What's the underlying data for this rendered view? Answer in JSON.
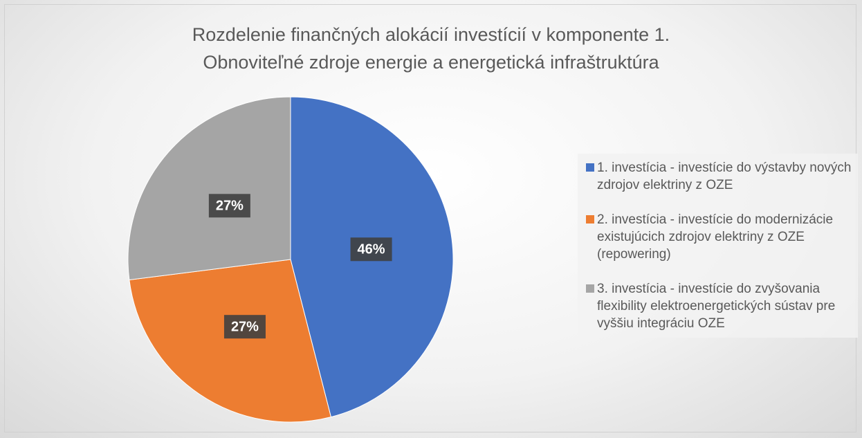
{
  "chart_data": {
    "type": "pie",
    "title": "Rozdelenie finančných alokácií investícií v komponente 1.\nObnoviteľné zdroje energie a energetická infraštruktúra",
    "categories": [
      "1. investícia - investície do výstavby nových zdrojov elektriny z OZE",
      "2. investícia - investície do modernizácie existujúcich zdrojov elektriny z OZE (repowering)",
      "3. investícia - investície do zvyšovania flexibility elektroenergetických sústav pre vyššiu integráciu OZE"
    ],
    "values": [
      46,
      27,
      27
    ],
    "value_labels": [
      "46%",
      "27%",
      "27%"
    ],
    "colors": [
      "#4472c4",
      "#ed7d31",
      "#a5a5a5"
    ],
    "legend": "right"
  }
}
